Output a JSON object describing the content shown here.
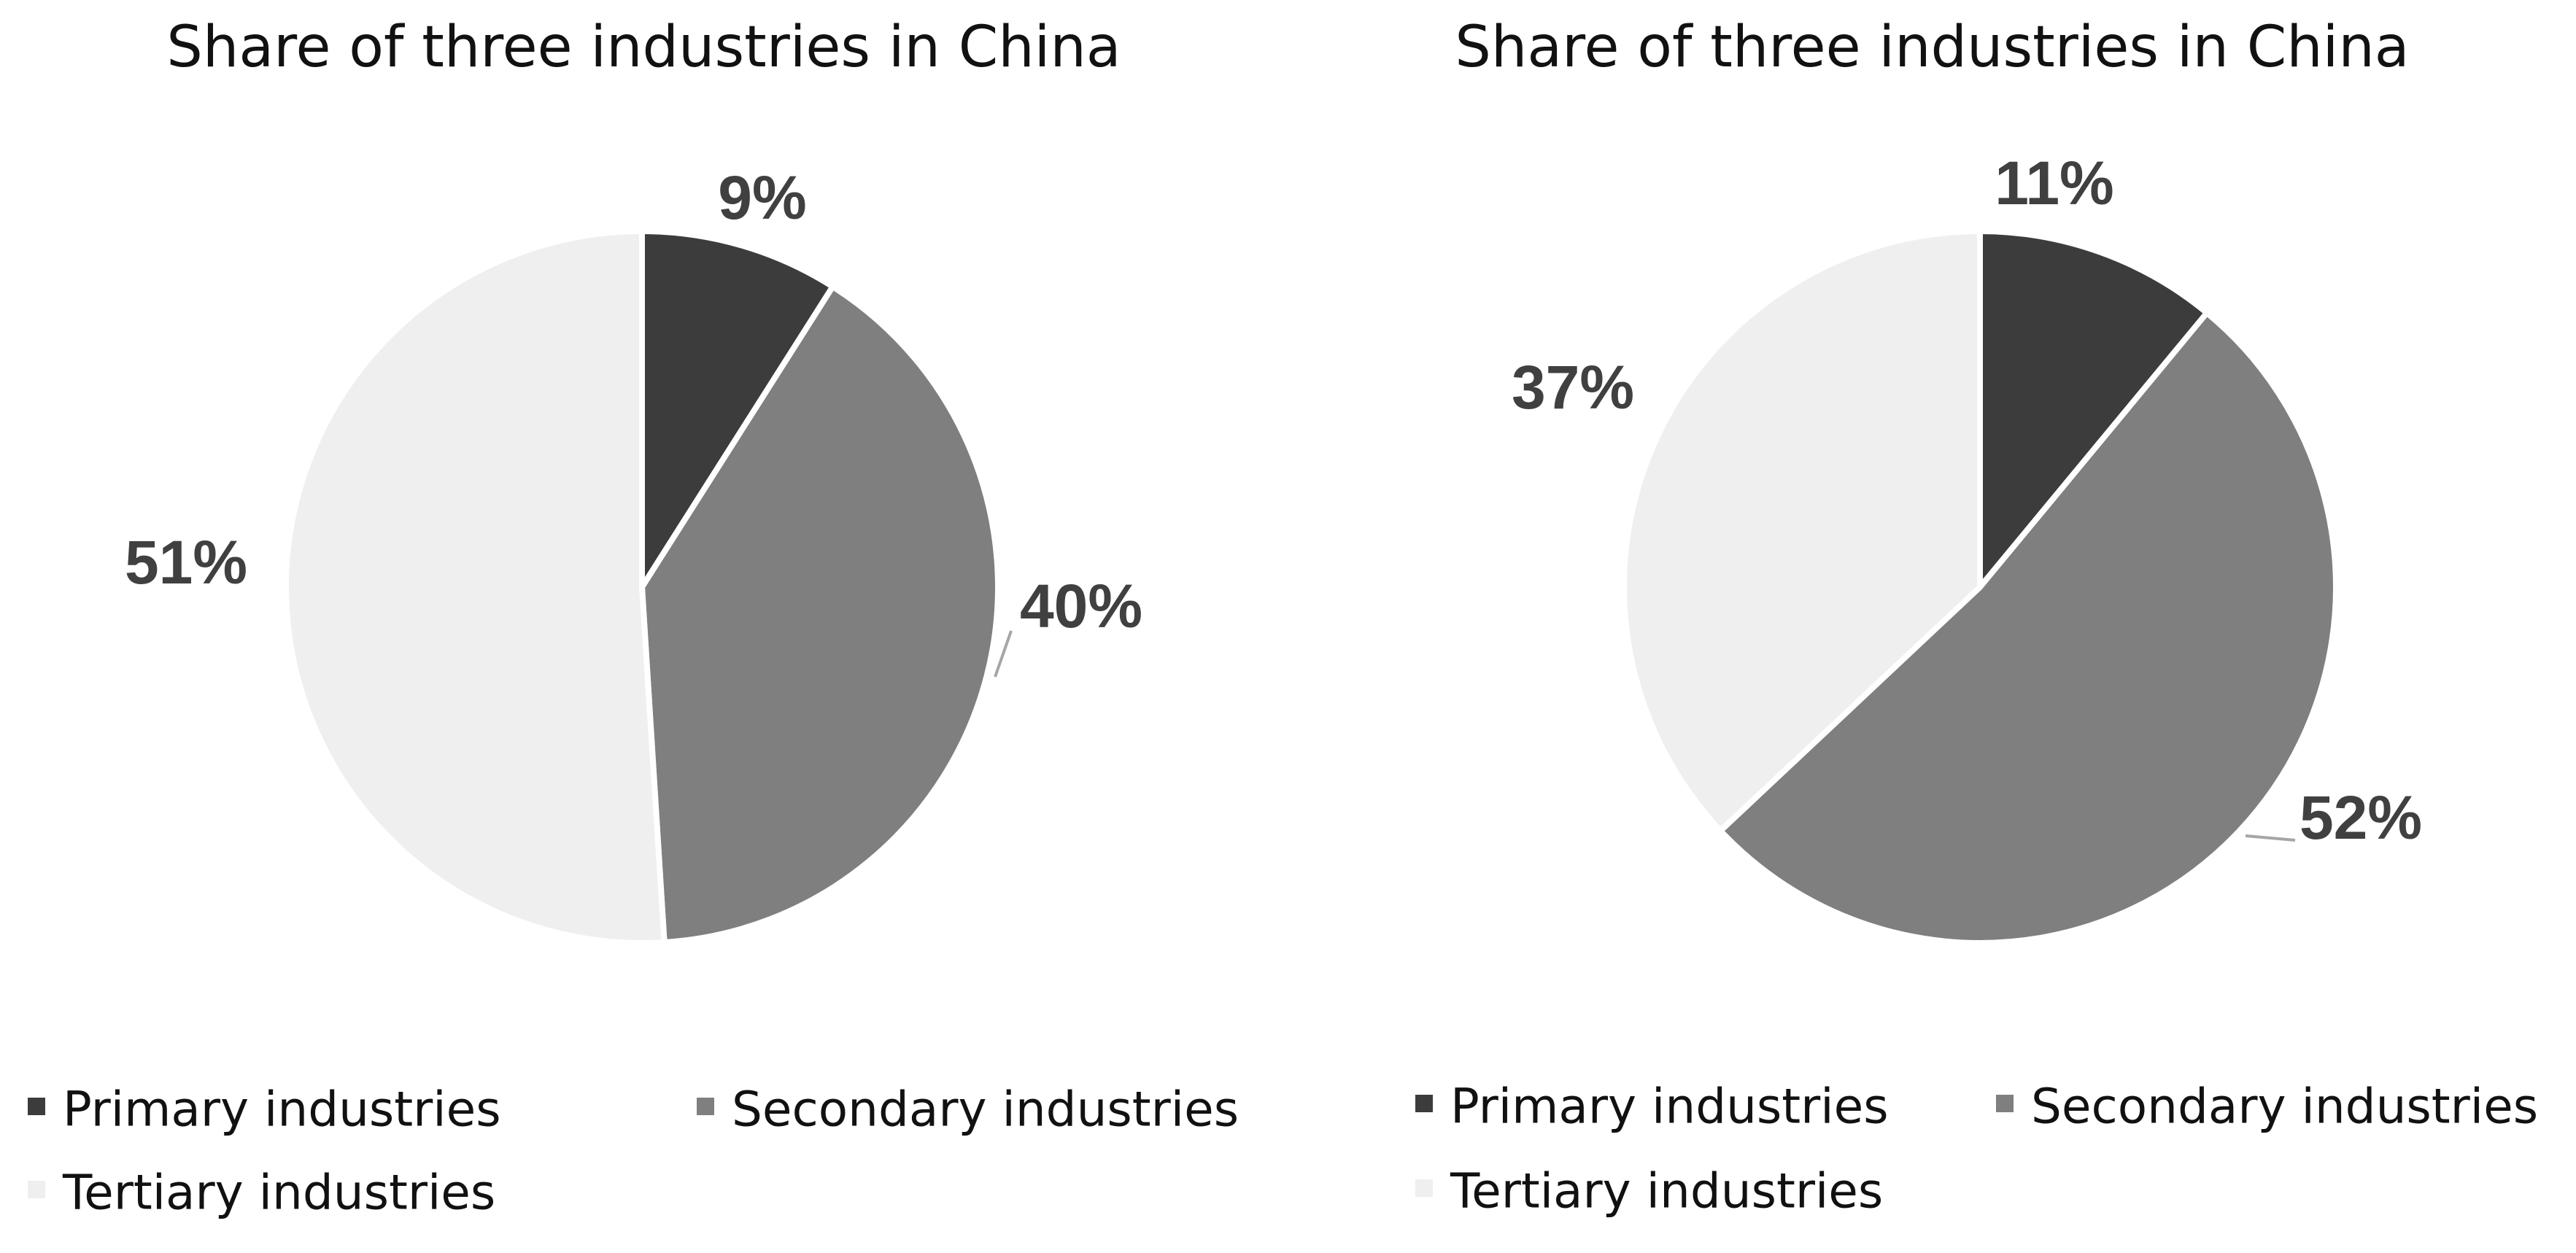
{
  "chart_data": [
    {
      "type": "pie",
      "title": "Share of three industries in China",
      "categories": [
        "Primary industries",
        "Secondary industries",
        "Tertiary industries"
      ],
      "values": [
        9,
        40,
        51
      ],
      "data_labels": [
        "9%",
        "40%",
        "51%"
      ],
      "colors": [
        "#3c3c3c",
        "#7f7f7f",
        "#efefef"
      ],
      "start_angle_deg": 0,
      "direction": "clockwise",
      "legend": "bottom"
    },
    {
      "type": "pie",
      "title": "Share of three industries in China",
      "categories": [
        "Primary industries",
        "Secondary industries",
        "Tertiary industries"
      ],
      "values": [
        11,
        52,
        37
      ],
      "data_labels": [
        "11%",
        "52%",
        "37%"
      ],
      "colors": [
        "#3c3c3c",
        "#7f7f7f",
        "#efefef"
      ],
      "start_angle_deg": 0,
      "direction": "clockwise",
      "legend": "bottom"
    }
  ]
}
